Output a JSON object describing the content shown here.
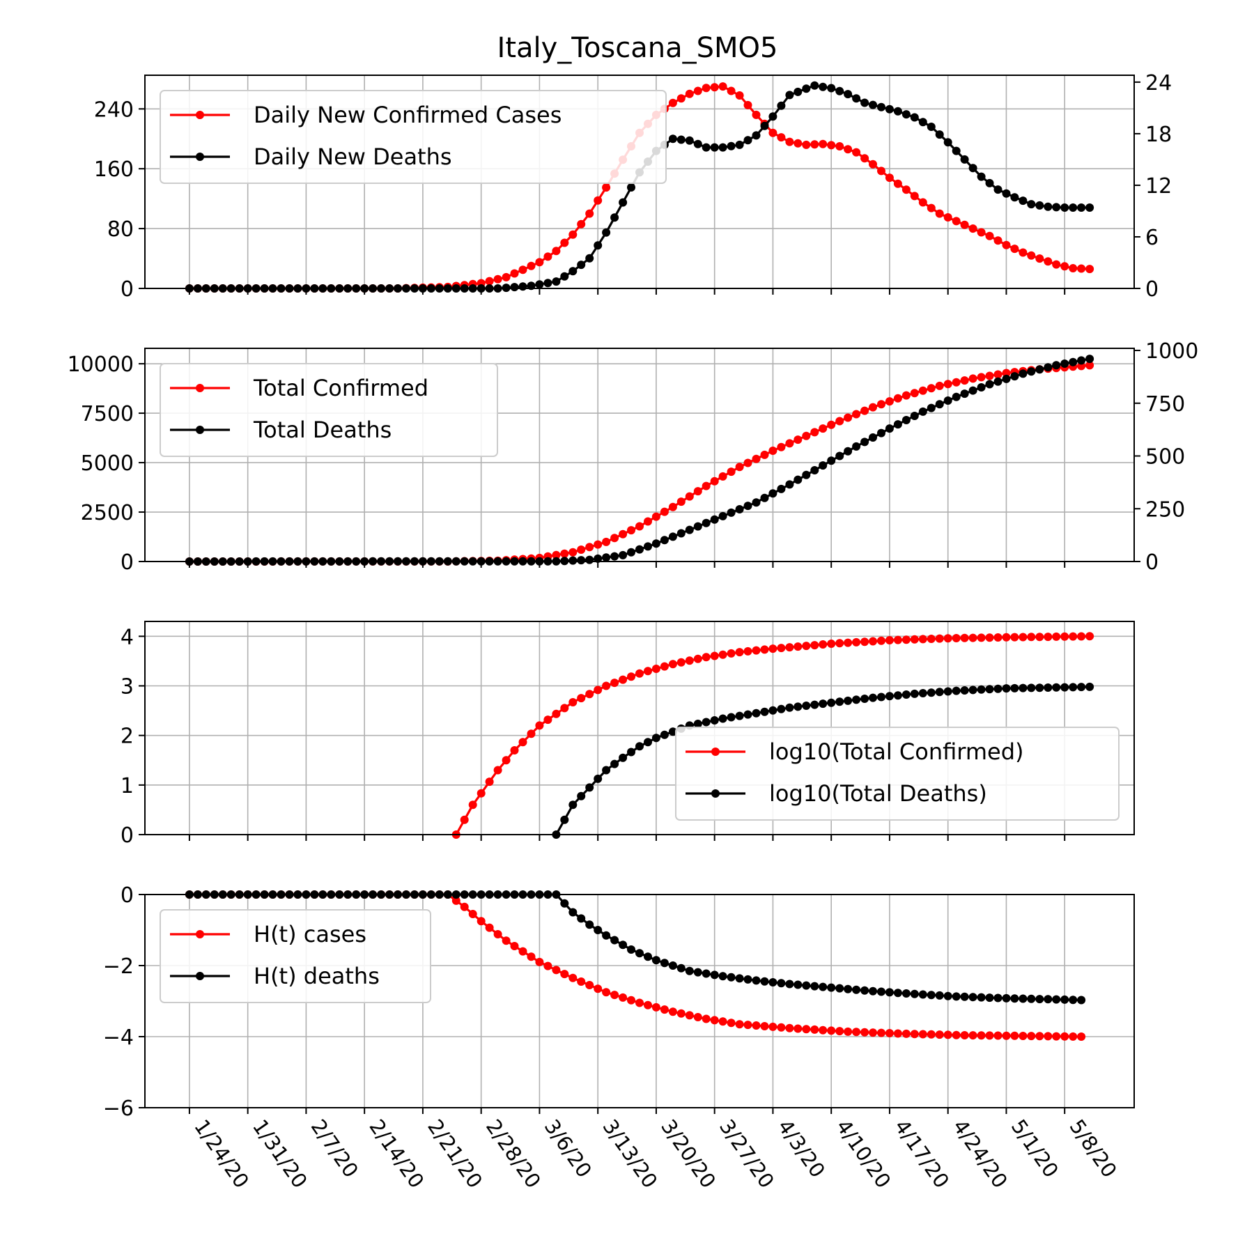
{
  "chart_data": {
    "title": "Italy_Toscana_SMO5",
    "type": "line",
    "x_start": "1/24/20",
    "x_end": "5/11/20",
    "x_ticks": [
      "1/24/20",
      "1/31/20",
      "2/7/20",
      "2/14/20",
      "2/21/20",
      "2/28/20",
      "3/6/20",
      "3/13/20",
      "3/20/20",
      "3/27/20",
      "4/3/20",
      "4/10/20",
      "4/17/20",
      "4/24/20",
      "5/1/20",
      "5/8/20"
    ],
    "grid": true,
    "colors": {
      "confirmed": "#ff0000",
      "deaths": "#000000"
    },
    "panels": [
      {
        "legend_position": "upper-left",
        "ylim_left": [
          0,
          285
        ],
        "yticks_left": [
          "0",
          "80",
          "160",
          "240"
        ],
        "ylim_right": [
          0,
          24.8
        ],
        "yticks_right": [
          "0",
          "6",
          "12",
          "18",
          "24"
        ],
        "series": [
          {
            "name": "Daily New Confirmed Cases",
            "axis": "left",
            "color": "#ff0000",
            "points": [
              [
                "1/24/20",
                0
              ],
              [
                "2/18/20",
                0
              ],
              [
                "2/24/20",
                2
              ],
              [
                "2/28/20",
                7
              ],
              [
                "3/2/20",
                15
              ],
              [
                "3/4/20",
                25
              ],
              [
                "3/6/20",
                35
              ],
              [
                "3/8/20",
                50
              ],
              [
                "3/10/20",
                72
              ],
              [
                "3/12/20",
                100
              ],
              [
                "3/14/20",
                135
              ],
              [
                "3/16/20",
                172
              ],
              [
                "3/18/20",
                208
              ],
              [
                "3/20/20",
                232
              ],
              [
                "3/22/20",
                248
              ],
              [
                "3/24/20",
                260
              ],
              [
                "3/26/20",
                268
              ],
              [
                "3/28/20",
                270
              ],
              [
                "3/30/20",
                258
              ],
              [
                "4/1/20",
                232
              ],
              [
                "4/3/20",
                208
              ],
              [
                "4/5/20",
                196
              ],
              [
                "4/7/20",
                192
              ],
              [
                "4/9/20",
                193
              ],
              [
                "4/11/20",
                190
              ],
              [
                "4/13/20",
                182
              ],
              [
                "4/15/20",
                166
              ],
              [
                "4/17/20",
                148
              ],
              [
                "4/19/20",
                132
              ],
              [
                "4/21/20",
                115
              ],
              [
                "4/23/20",
                100
              ],
              [
                "4/25/20",
                90
              ],
              [
                "4/27/20",
                80
              ],
              [
                "4/29/20",
                70
              ],
              [
                "5/1/20",
                58
              ],
              [
                "5/3/20",
                48
              ],
              [
                "5/5/20",
                40
              ],
              [
                "5/7/20",
                32
              ],
              [
                "5/9/20",
                27
              ],
              [
                "5/11/20",
                26
              ]
            ]
          },
          {
            "name": "Daily New Deaths",
            "axis": "right",
            "color": "#000000",
            "points": [
              [
                "1/24/20",
                0
              ],
              [
                "3/1/20",
                0
              ],
              [
                "3/5/20",
                0.3
              ],
              [
                "3/8/20",
                0.8
              ],
              [
                "3/10/20",
                2
              ],
              [
                "3/12/20",
                3.5
              ],
              [
                "3/14/20",
                6.5
              ],
              [
                "3/16/20",
                10
              ],
              [
                "3/18/20",
                13.5
              ],
              [
                "3/20/20",
                16
              ],
              [
                "3/22/20",
                17.4
              ],
              [
                "3/24/20",
                17.2
              ],
              [
                "3/26/20",
                16.4
              ],
              [
                "3/28/20",
                16.4
              ],
              [
                "3/30/20",
                16.7
              ],
              [
                "4/1/20",
                17.8
              ],
              [
                "4/3/20",
                20
              ],
              [
                "4/5/20",
                22.5
              ],
              [
                "4/8/20",
                23.6
              ],
              [
                "4/10/20",
                23.3
              ],
              [
                "4/12/20",
                22.6
              ],
              [
                "4/14/20",
                21.6
              ],
              [
                "4/16/20",
                21.1
              ],
              [
                "4/18/20",
                20.6
              ],
              [
                "4/20/20",
                19.9
              ],
              [
                "4/22/20",
                18.8
              ],
              [
                "4/24/20",
                17
              ],
              [
                "4/26/20",
                15
              ],
              [
                "4/28/20",
                13
              ],
              [
                "4/30/20",
                11.5
              ],
              [
                "5/2/20",
                10.6
              ],
              [
                "5/4/20",
                9.8
              ],
              [
                "5/6/20",
                9.5
              ],
              [
                "5/8/20",
                9.4
              ],
              [
                "5/11/20",
                9.4
              ]
            ]
          }
        ]
      },
      {
        "legend_position": "upper-left",
        "ylim_left": [
          0,
          10780
        ],
        "yticks_left": [
          "0",
          "2500",
          "5000",
          "7500",
          "10000"
        ],
        "ylim_right": [
          0,
          1010
        ],
        "yticks_right": [
          "0",
          "250",
          "500",
          "750",
          "1000"
        ],
        "series": [
          {
            "name": "Total Confirmed",
            "axis": "left",
            "color": "#ff0000",
            "points": [
              [
                "1/24/20",
                0
              ],
              [
                "2/24/20",
                5
              ],
              [
                "3/1/20",
                40
              ],
              [
                "3/6/20",
                180
              ],
              [
                "3/10/20",
                470
              ],
              [
                "3/14/20",
                990
              ],
              [
                "3/18/20",
                1780
              ],
              [
                "3/22/20",
                2760
              ],
              [
                "3/26/20",
                3820
              ],
              [
                "3/30/20",
                4780
              ],
              [
                "4/3/20",
                5600
              ],
              [
                "4/7/20",
                6350
              ],
              [
                "4/11/20",
                7100
              ],
              [
                "4/15/20",
                7800
              ],
              [
                "4/19/20",
                8400
              ],
              [
                "4/23/20",
                8880
              ],
              [
                "4/27/20",
                9250
              ],
              [
                "5/1/20",
                9530
              ],
              [
                "5/5/20",
                9720
              ],
              [
                "5/11/20",
                9920
              ]
            ]
          },
          {
            "name": "Total Deaths",
            "axis": "right",
            "color": "#000000",
            "points": [
              [
                "1/24/20",
                0
              ],
              [
                "3/8/20",
                1
              ],
              [
                "3/12/20",
                8
              ],
              [
                "3/16/20",
                30
              ],
              [
                "3/20/20",
                85
              ],
              [
                "3/24/20",
                150
              ],
              [
                "3/28/20",
                215
              ],
              [
                "4/1/20",
                280
              ],
              [
                "4/5/20",
                365
              ],
              [
                "4/9/20",
                455
              ],
              [
                "4/13/20",
                545
              ],
              [
                "4/17/20",
                630
              ],
              [
                "4/21/20",
                710
              ],
              [
                "4/25/20",
                780
              ],
              [
                "4/29/20",
                840
              ],
              [
                "5/3/20",
                890
              ],
              [
                "5/7/20",
                930
              ],
              [
                "5/11/20",
                960
              ]
            ]
          }
        ]
      },
      {
        "legend_position": "lower-right",
        "ylim_left": [
          0,
          4.3
        ],
        "yticks_left": [
          "0",
          "1",
          "2",
          "3",
          "4"
        ],
        "series": [
          {
            "name": "log10(Total Confirmed)",
            "axis": "left",
            "color": "#ff0000",
            "points": [
              [
                "2/25/20",
                0
              ],
              [
                "2/27/20",
                0.6
              ],
              [
                "3/1/20",
                1.3
              ],
              [
                "3/3/20",
                1.7
              ],
              [
                "3/6/20",
                2.2
              ],
              [
                "3/10/20",
                2.67
              ],
              [
                "3/14/20",
                3.0
              ],
              [
                "3/18/20",
                3.25
              ],
              [
                "3/22/20",
                3.44
              ],
              [
                "3/26/20",
                3.58
              ],
              [
                "3/30/20",
                3.68
              ],
              [
                "4/3/20",
                3.75
              ],
              [
                "4/10/20",
                3.85
              ],
              [
                "4/17/20",
                3.92
              ],
              [
                "4/24/20",
                3.96
              ],
              [
                "5/1/20",
                3.98
              ],
              [
                "5/11/20",
                4.0
              ]
            ]
          },
          {
            "name": "log10(Total Deaths)",
            "axis": "left",
            "color": "#000000",
            "points": [
              [
                "3/8/20",
                0
              ],
              [
                "3/10/20",
                0.6
              ],
              [
                "3/12/20",
                0.95
              ],
              [
                "3/14/20",
                1.3
              ],
              [
                "3/16/20",
                1.55
              ],
              [
                "3/18/20",
                1.78
              ],
              [
                "3/20/20",
                1.95
              ],
              [
                "3/24/20",
                2.2
              ],
              [
                "3/28/20",
                2.34
              ],
              [
                "4/1/20",
                2.45
              ],
              [
                "4/5/20",
                2.56
              ],
              [
                "4/10/20",
                2.66
              ],
              [
                "4/15/20",
                2.76
              ],
              [
                "4/20/20",
                2.84
              ],
              [
                "4/25/20",
                2.9
              ],
              [
                "5/1/20",
                2.95
              ],
              [
                "5/11/20",
                2.98
              ]
            ]
          }
        ]
      },
      {
        "legend_position": "upper-left",
        "ylim_left": [
          -6,
          0
        ],
        "yticks_left": [
          "0",
          "−2",
          "−4",
          "−6"
        ],
        "series": [
          {
            "name": "H(t) cases",
            "axis": "left",
            "color": "#ff0000",
            "points": [
              [
                "1/24/20",
                0
              ],
              [
                "2/24/20",
                0
              ],
              [
                "2/26/20",
                -0.35
              ],
              [
                "2/28/20",
                -0.75
              ],
              [
                "3/2/20",
                -1.3
              ],
              [
                "3/6/20",
                -1.9
              ],
              [
                "3/10/20",
                -2.35
              ],
              [
                "3/14/20",
                -2.75
              ],
              [
                "3/18/20",
                -3.05
              ],
              [
                "3/22/20",
                -3.3
              ],
              [
                "3/26/20",
                -3.5
              ],
              [
                "3/30/20",
                -3.65
              ],
              [
                "4/5/20",
                -3.76
              ],
              [
                "4/12/20",
                -3.86
              ],
              [
                "4/19/20",
                -3.92
              ],
              [
                "4/26/20",
                -3.96
              ],
              [
                "5/3/20",
                -3.98
              ],
              [
                "5/10/20",
                -4.0
              ]
            ]
          },
          {
            "name": "H(t) deaths",
            "axis": "left",
            "color": "#000000",
            "points": [
              [
                "1/24/20",
                0
              ],
              [
                "3/3/20",
                0
              ],
              [
                "3/8/20",
                0
              ],
              [
                "3/10/20",
                -0.5
              ],
              [
                "3/12/20",
                -0.85
              ],
              [
                "3/14/20",
                -1.15
              ],
              [
                "3/17/20",
                -1.55
              ],
              [
                "3/20/20",
                -1.85
              ],
              [
                "3/24/20",
                -2.15
              ],
              [
                "3/28/20",
                -2.3
              ],
              [
                "4/1/20",
                -2.42
              ],
              [
                "4/5/20",
                -2.52
              ],
              [
                "4/10/20",
                -2.62
              ],
              [
                "4/15/20",
                -2.72
              ],
              [
                "4/20/20",
                -2.8
              ],
              [
                "4/25/20",
                -2.87
              ],
              [
                "5/1/20",
                -2.92
              ],
              [
                "5/10/20",
                -2.97
              ]
            ]
          }
        ]
      }
    ]
  }
}
